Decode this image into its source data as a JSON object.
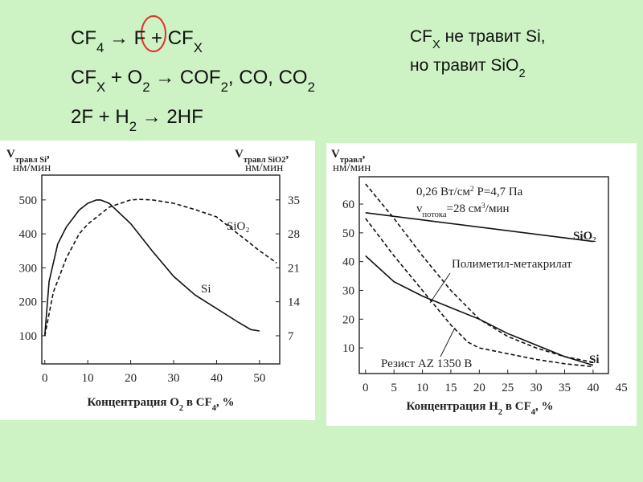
{
  "equations": [
    [
      {
        "t": "CF"
      },
      {
        "sub": "4"
      },
      {
        "t": " → F + CF"
      },
      {
        "sub": "X"
      }
    ],
    [
      {
        "t": "CF"
      },
      {
        "sub": "X"
      },
      {
        "t": " + O"
      },
      {
        "sub": "2"
      },
      {
        "t": " → COF"
      },
      {
        "sub": "2"
      },
      {
        "t": ", CO, CO"
      },
      {
        "sub": "2"
      }
    ],
    [
      {
        "t": "2F + H"
      },
      {
        "sub": "2"
      },
      {
        "t": " → 2HF"
      }
    ]
  ],
  "note": [
    [
      {
        "t": "CF"
      },
      {
        "sub": "X"
      },
      {
        "t": " не травит Si,"
      }
    ],
    [
      {
        "t": "но травит SiO"
      },
      {
        "sub": "2"
      }
    ]
  ],
  "chart_data": [
    {
      "type": "line",
      "y_label": [
        {
          "t": "V"
        },
        {
          "sub": "травл Si"
        },
        {
          "t": ","
        }
      ],
      "y_unit": "нм/мин",
      "y2_label": [
        {
          "t": "V"
        },
        {
          "sub": "травл SiO2"
        },
        {
          "t": ","
        }
      ],
      "y2_unit": "нм/мин",
      "x_label": [
        {
          "t": "Концентрация O"
        },
        {
          "sub": "2"
        },
        {
          "t": " в CF"
        },
        {
          "sub": "4"
        },
        {
          "t": ", %"
        }
      ],
      "xlim": [
        -0.7,
        54.7
      ],
      "xticks": [
        0,
        10,
        20,
        30,
        40,
        50
      ],
      "ylim": [
        17,
        573
      ],
      "yticks": [
        100,
        200,
        300,
        400,
        500
      ],
      "y2lim": [
        1.2,
        40.1
      ],
      "y2ticks": [
        7,
        14,
        21,
        28,
        35
      ],
      "series": [
        {
          "name": "Si",
          "color": "#111111",
          "style": "solid",
          "x": [
            0,
            1,
            3,
            5,
            8,
            10,
            12,
            13,
            15,
            20,
            25,
            30,
            35,
            40,
            45,
            48,
            50
          ],
          "values": [
            100,
            260,
            370,
            420,
            470,
            490,
            500,
            500,
            490,
            430,
            350,
            275,
            220,
            180,
            140,
            118,
            114
          ]
        },
        {
          "name": "SiO₂",
          "color": "#111111",
          "style": "dashed",
          "axis": "y2",
          "x": [
            0,
            2,
            5,
            8,
            10,
            15,
            20,
            22,
            25,
            30,
            35,
            40,
            45,
            50,
            54
          ],
          "values": [
            7,
            16,
            23,
            28,
            30,
            33.5,
            35,
            35.1,
            35,
            34.3,
            33,
            31.5,
            28,
            24.5,
            22
          ]
        }
      ]
    },
    {
      "type": "line",
      "y_label": [
        {
          "t": "V"
        },
        {
          "sub": "травл"
        },
        {
          "t": ","
        }
      ],
      "y_unit": "нм/мин",
      "x_label": [
        {
          "t": "Концентрация H"
        },
        {
          "sub": "2"
        },
        {
          "t": " в CF"
        },
        {
          "sub": "4"
        },
        {
          "t": ", %"
        }
      ],
      "annotations": [
        [
          {
            "t": "0,26 Вт/см"
          },
          {
            "sup": "2"
          },
          {
            "t": "   Р=4,7 Па"
          }
        ],
        [
          {
            "t": "v"
          },
          {
            "sub": "потока"
          },
          {
            "t": "=28 см"
          },
          {
            "sup": "3"
          },
          {
            "t": "/мин"
          }
        ]
      ],
      "xlim": [
        -1.1,
        42.7
      ],
      "xticks": [
        0,
        5,
        10,
        15,
        20,
        25,
        30,
        35,
        40,
        45
      ],
      "ylim": [
        1.1,
        69.5
      ],
      "yticks": [
        10,
        20,
        30,
        40,
        50,
        60
      ],
      "series": [
        {
          "name": "SiO₂",
          "color": "#111111",
          "style": "solid",
          "x": [
            0,
            40
          ],
          "values": [
            57,
            47
          ]
        },
        {
          "name": "Полиметил-метакрилат",
          "color": "#111111",
          "style": "dashed",
          "x": [
            0,
            5,
            10,
            15,
            20,
            25,
            30,
            35,
            40
          ],
          "values": [
            67,
            55,
            42,
            30,
            20,
            14,
            10,
            7,
            5
          ]
        },
        {
          "name": "Резист AZ 1350 В",
          "color": "#111111",
          "style": "dashed",
          "x": [
            0,
            5,
            10,
            15,
            18,
            20,
            25,
            30,
            35,
            40
          ],
          "values": [
            55,
            42,
            30,
            18,
            12,
            10,
            8,
            6,
            4.5,
            3.5
          ]
        },
        {
          "name": "Si",
          "color": "#111111",
          "style": "solid",
          "x": [
            0,
            5,
            10,
            15,
            20,
            25,
            30,
            35,
            40
          ],
          "values": [
            42,
            33,
            28,
            24,
            20,
            15,
            11,
            7,
            4
          ]
        }
      ]
    }
  ]
}
